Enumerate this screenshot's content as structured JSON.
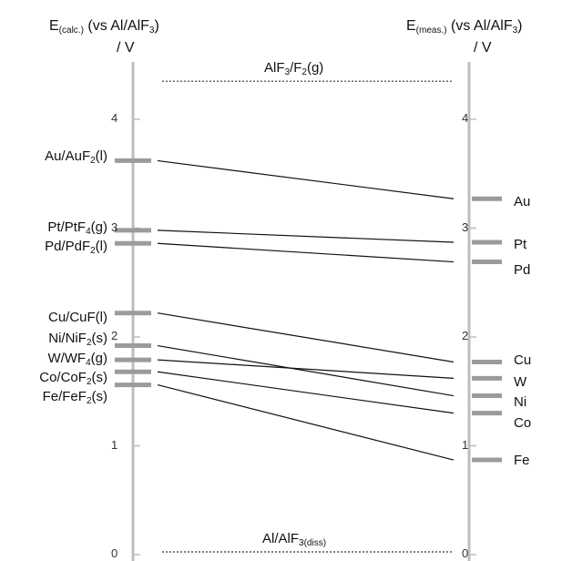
{
  "left_axis": {
    "title_main": "E",
    "title_sub": "(calc.)",
    "title_rest": "(vs Al/AlF",
    "title_rest_sub": "3",
    "title_close": ")",
    "unit": "/ V"
  },
  "right_axis": {
    "title_main": "E",
    "title_sub": "(meas.)",
    "title_rest": "(vs Al/AlF",
    "title_rest_sub": "3",
    "title_close": ")",
    "unit": "/ V"
  },
  "ticks": [
    "0",
    "1",
    "2",
    "3",
    "4"
  ],
  "ylim": [
    0,
    4.6
  ],
  "reference_lines": [
    {
      "label_main": "AlF",
      "label_sub": "3",
      "label_rest": "/F",
      "label_sub2": "2",
      "label_end": "(g)",
      "value": 4.35
    },
    {
      "label_main": "Al/AlF",
      "label_sub": "3(diss)",
      "label_rest": "",
      "label_sub2": "",
      "label_end": "",
      "value": 0.0
    }
  ],
  "couples": [
    {
      "name": "Au",
      "left_main": "Au/AuF",
      "left_sub": "2",
      "left_end": "(l)",
      "calc": 3.62,
      "meas": 3.27
    },
    {
      "name": "Pt",
      "left_main": "Pt/PtF",
      "left_sub": "4",
      "left_end": "(g)",
      "calc": 2.98,
      "meas": 2.87
    },
    {
      "name": "Pd",
      "left_main": "Pd/PdF",
      "left_sub": "2",
      "left_end": "(l)",
      "calc": 2.86,
      "meas": 2.69
    },
    {
      "name": "Cu",
      "left_main": "Cu/CuF",
      "left_sub": "",
      "left_end": "(l)",
      "calc": 2.22,
      "meas": 1.77
    },
    {
      "name": "Ni",
      "left_main": "Ni/NiF",
      "left_sub": "2",
      "left_end": "(s)",
      "calc": 1.92,
      "meas": 1.46
    },
    {
      "name": "W",
      "left_main": "W/WF",
      "left_sub": "4",
      "left_end": "(g)",
      "calc": 1.79,
      "meas": 1.62
    },
    {
      "name": "Co",
      "left_main": "Co/CoF",
      "left_sub": "2",
      "left_end": "(s)",
      "calc": 1.68,
      "meas": 1.3
    },
    {
      "name": "Fe",
      "left_main": "Fe/FeF",
      "left_sub": "2",
      "left_end": "(s)",
      "calc": 1.56,
      "meas": 0.87
    }
  ],
  "colors": {
    "axis": "#bdbdbd",
    "marker": "#9b9b9b",
    "line": "#111111",
    "ref": "#333333"
  }
}
